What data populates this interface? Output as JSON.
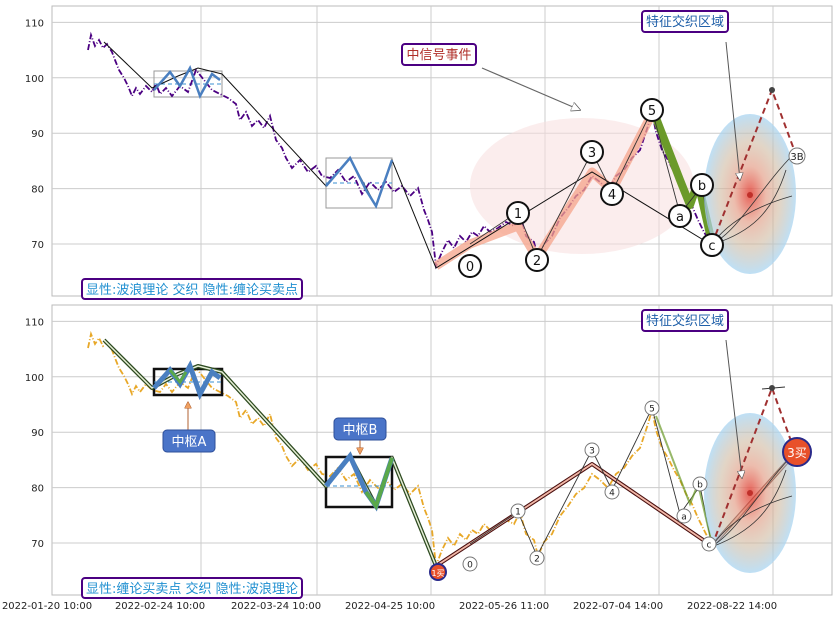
{
  "chart_data": {
    "type": "line",
    "x_ticks": [
      "2022-01-20 10:00",
      "2022-02-24 10:00",
      "2022-03-24 10:00",
      "2022-04-25 10:00",
      "2022-05-26 11:00",
      "2022-07-04 14:00",
      "2022-08-22 14:00"
    ],
    "y_ticks": [
      70,
      80,
      90,
      100,
      110
    ],
    "ylim": [
      60,
      113
    ],
    "grid": true,
    "panels": [
      {
        "id": "top",
        "legend_text": "显性:波浪理论 交织 隐性:缠论买卖点",
        "callouts": [
          {
            "text": "中信号事件",
            "color": "#b0302a"
          },
          {
            "text": "特征交织区域",
            "color": "#1f5fa8"
          }
        ],
        "wave_labels": [
          "0",
          "1",
          "2",
          "3",
          "4",
          "5",
          "a",
          "b",
          "c"
        ],
        "future_label": "3B",
        "wave_points": [
          {
            "label": "0",
            "x": "2022-04-28",
            "y": 66
          },
          {
            "label": "1",
            "x": "2022-05-24",
            "y": 75
          },
          {
            "label": "2",
            "x": "2022-06-01",
            "y": 68
          },
          {
            "label": "3",
            "x": "2022-06-22",
            "y": 84
          },
          {
            "label": "4",
            "x": "2022-06-27",
            "y": 80
          },
          {
            "label": "5",
            "x": "2022-07-14",
            "y": 93
          },
          {
            "label": "a",
            "x": "2022-08-01",
            "y": 75
          },
          {
            "label": "b",
            "x": "2022-08-06",
            "y": 80
          },
          {
            "label": "c",
            "x": "2022-08-15",
            "y": 70
          }
        ]
      },
      {
        "id": "bottom",
        "legend_text": "显性:缠论买卖点 交织 隐性:波浪理论",
        "callouts": [
          {
            "text": "特征交织区域",
            "color": "#1f5fa8"
          },
          {
            "text": "中枢A",
            "color": "#ffffff"
          },
          {
            "text": "中枢B",
            "color": "#ffffff"
          }
        ],
        "buy_points": [
          {
            "label": "1买",
            "x": "2022-04-24",
            "y": 64
          },
          {
            "label": "3买",
            "x": "2022-09-07",
            "y": 86
          }
        ],
        "wave_labels": [
          "0",
          "1",
          "2",
          "3",
          "4",
          "5",
          "a",
          "b",
          "c"
        ]
      }
    ],
    "series": [
      {
        "name": "价格",
        "color": "#4b0082",
        "values": [
          {
            "x": "2022-01-20",
            "y": 105
          },
          {
            "x": "2022-01-23",
            "y": 108
          },
          {
            "x": "2022-01-27",
            "y": 107
          },
          {
            "x": "2022-02-01",
            "y": 104
          },
          {
            "x": "2022-02-05",
            "y": 103
          },
          {
            "x": "2022-02-10",
            "y": 98
          },
          {
            "x": "2022-02-15",
            "y": 101
          },
          {
            "x": "2022-02-20",
            "y": 96
          },
          {
            "x": "2022-02-24",
            "y": 99
          },
          {
            "x": "2022-03-01",
            "y": 101
          },
          {
            "x": "2022-03-05",
            "y": 98
          },
          {
            "x": "2022-03-10",
            "y": 100
          },
          {
            "x": "2022-03-14",
            "y": 97
          },
          {
            "x": "2022-03-18",
            "y": 95
          },
          {
            "x": "2022-03-22",
            "y": 92
          },
          {
            "x": "2022-03-26",
            "y": 94
          },
          {
            "x": "2022-03-30",
            "y": 89
          },
          {
            "x": "2022-04-03",
            "y": 85
          },
          {
            "x": "2022-04-07",
            "y": 84
          },
          {
            "x": "2022-04-10",
            "y": 80
          },
          {
            "x": "2022-04-13",
            "y": 83
          },
          {
            "x": "2022-04-16",
            "y": 79
          },
          {
            "x": "2022-04-19",
            "y": 82
          },
          {
            "x": "2022-04-22",
            "y": 78
          },
          {
            "x": "2022-04-25",
            "y": 75
          },
          {
            "x": "2022-04-27",
            "y": 67
          },
          {
            "x": "2022-05-02",
            "y": 71
          },
          {
            "x": "2022-05-07",
            "y": 70
          },
          {
            "x": "2022-05-12",
            "y": 72
          },
          {
            "x": "2022-05-17",
            "y": 71
          },
          {
            "x": "2022-05-22",
            "y": 74
          },
          {
            "x": "2022-05-27",
            "y": 72
          },
          {
            "x": "2022-06-01",
            "y": 68
          },
          {
            "x": "2022-06-06",
            "y": 74
          },
          {
            "x": "2022-06-11",
            "y": 78
          },
          {
            "x": "2022-06-16",
            "y": 81
          },
          {
            "x": "2022-06-21",
            "y": 83
          },
          {
            "x": "2022-06-26",
            "y": 80
          },
          {
            "x": "2022-07-01",
            "y": 84
          },
          {
            "x": "2022-07-06",
            "y": 87
          },
          {
            "x": "2022-07-10",
            "y": 90
          },
          {
            "x": "2022-07-14",
            "y": 93
          },
          {
            "x": "2022-07-19",
            "y": 86
          },
          {
            "x": "2022-07-24",
            "y": 82
          },
          {
            "x": "2022-07-29",
            "y": 78
          },
          {
            "x": "2022-08-03",
            "y": 76
          },
          {
            "x": "2022-08-08",
            "y": 78
          },
          {
            "x": "2022-08-12",
            "y": 73
          },
          {
            "x": "2022-08-16",
            "y": 70
          }
        ]
      }
    ]
  }
}
